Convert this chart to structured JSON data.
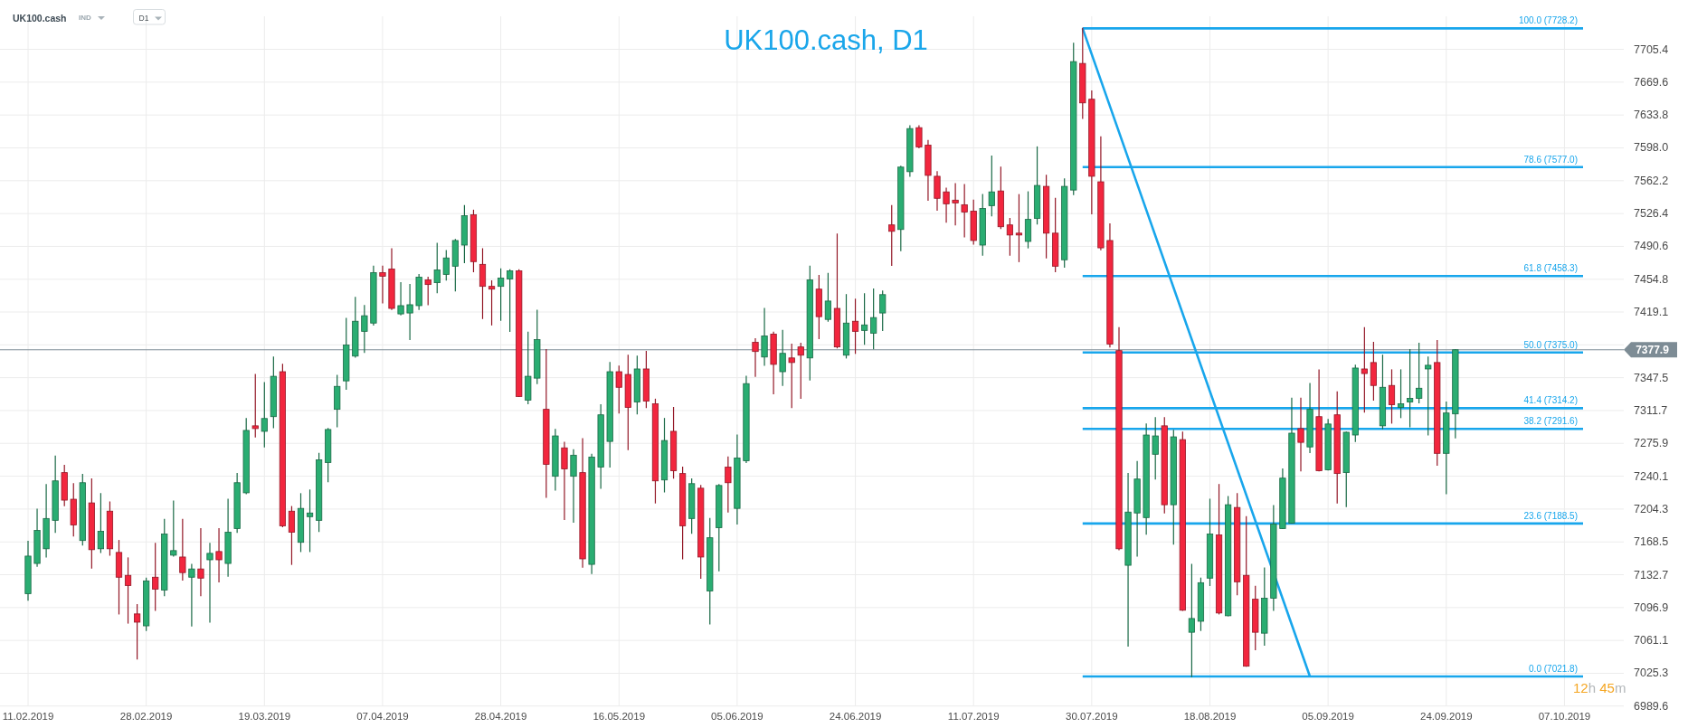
{
  "chart_data": {
    "type": "candlestick",
    "title": "UK100.cash, D1",
    "annotations": [
      "UK100.cash",
      "IND",
      "D1",
      "12h 45m"
    ],
    "categories": [
      "11.02.2019",
      null,
      null,
      null,
      null,
      null,
      null,
      null,
      null,
      null,
      null,
      null,
      null,
      "28.02.2019",
      null,
      null,
      null,
      null,
      null,
      null,
      null,
      null,
      null,
      null,
      null,
      null,
      "19.03.2019",
      null,
      null,
      null,
      null,
      null,
      null,
      null,
      null,
      null,
      null,
      null,
      null,
      "07.04.2019",
      null,
      null,
      null,
      null,
      null,
      null,
      null,
      null,
      null,
      null,
      null,
      null,
      "28.04.2019",
      null,
      null,
      null,
      null,
      null,
      null,
      null,
      null,
      null,
      null,
      null,
      null,
      "16.05.2019",
      null,
      null,
      null,
      null,
      null,
      null,
      null,
      null,
      null,
      null,
      null,
      null,
      "05.06.2019",
      null,
      null,
      null,
      null,
      null,
      null,
      null,
      null,
      null,
      null,
      null,
      null,
      "24.06.2019",
      null,
      null,
      null,
      null,
      null,
      null,
      null,
      null,
      null,
      null,
      null,
      null,
      "11.07.2019",
      null,
      null,
      null,
      null,
      null,
      null,
      null,
      null,
      null,
      null,
      null,
      null,
      "30.07.2019",
      null,
      null,
      null,
      null,
      null,
      null,
      null,
      null,
      null,
      null,
      null,
      null,
      "18.08.2019",
      null,
      null,
      null,
      null,
      null,
      null,
      null,
      null,
      null,
      null,
      null,
      null,
      "05.09.2019",
      null,
      null,
      null,
      null,
      null,
      null,
      null,
      null,
      null,
      null,
      null,
      null,
      "24.09.2019",
      null,
      null,
      null,
      null,
      null,
      null,
      null,
      null,
      null,
      null,
      null,
      null,
      "07.10.2019",
      null,
      null,
      null,
      null,
      null,
      null
    ],
    "ohlc": [
      [
        7112,
        7169,
        7105,
        7153
      ],
      [
        7145,
        7204,
        7142,
        7181
      ],
      [
        7161,
        7231,
        7152,
        7194
      ],
      [
        7192,
        7262,
        7179,
        7235
      ],
      [
        7244,
        7252,
        7208,
        7214
      ],
      [
        7215,
        7232,
        7175,
        7187
      ],
      [
        7170,
        7242,
        7165,
        7233
      ],
      [
        7211,
        7237,
        7140,
        7160
      ],
      [
        7161,
        7221,
        7157,
        7180
      ],
      [
        7202,
        7212,
        7154,
        7161
      ],
      [
        7157,
        7170,
        7090,
        7130
      ],
      [
        7132,
        7151,
        7080,
        7121
      ],
      [
        7090,
        7100,
        7041,
        7081
      ],
      [
        7077,
        7129,
        7072,
        7126
      ],
      [
        7130,
        7167,
        7094,
        7117
      ],
      [
        7116,
        7193,
        7110,
        7177
      ],
      [
        7154,
        7213,
        7153,
        7159
      ],
      [
        7152,
        7193,
        7127,
        7135
      ],
      [
        7130,
        7144,
        7077,
        7139
      ],
      [
        7139,
        7183,
        7110,
        7129
      ],
      [
        7149,
        7167,
        7081,
        7156
      ],
      [
        7158,
        7183,
        7125,
        7149
      ],
      [
        7145,
        7215,
        7131,
        7179
      ],
      [
        7183,
        7243,
        7179,
        7233
      ],
      [
        7222,
        7303,
        7221,
        7290
      ],
      [
        7295,
        7351,
        7283,
        7292
      ],
      [
        7289,
        7342,
        7272,
        7303
      ],
      [
        7305,
        7370,
        7293,
        7349
      ],
      [
        7354,
        7362,
        7185,
        7186
      ],
      [
        7202,
        7207,
        7144,
        7179
      ],
      [
        7168,
        7221,
        7158,
        7205
      ],
      [
        7196,
        7225,
        7158,
        7200
      ],
      [
        7192,
        7265,
        7180,
        7258
      ],
      [
        7255,
        7292,
        7234,
        7291
      ],
      [
        7313,
        7350,
        7294,
        7338
      ],
      [
        7344,
        7412,
        7335,
        7383
      ],
      [
        7371,
        7435,
        7370,
        7409
      ],
      [
        7398,
        7426,
        7375,
        7415
      ],
      [
        7407,
        7469,
        7405,
        7462
      ],
      [
        7462,
        7469,
        7429,
        7458
      ],
      [
        7466,
        7488,
        7422,
        7423
      ],
      [
        7417,
        7451,
        7416,
        7426
      ],
      [
        7418,
        7449,
        7389,
        7427
      ],
      [
        7426,
        7460,
        7422,
        7457
      ],
      [
        7454,
        7457,
        7427,
        7449
      ],
      [
        7451,
        7494,
        7440,
        7465
      ],
      [
        7460,
        7486,
        7454,
        7478
      ],
      [
        7469,
        7498,
        7442,
        7497
      ],
      [
        7492,
        7535,
        7473,
        7524
      ],
      [
        7525,
        7530,
        7463,
        7474
      ],
      [
        7471,
        7488,
        7412,
        7447
      ],
      [
        7447,
        7453,
        7405,
        7444
      ],
      [
        7447,
        7466,
        7410,
        7456
      ],
      [
        7455,
        7465,
        7398,
        7464
      ],
      [
        7464,
        7465,
        7327,
        7327
      ],
      [
        7323,
        7397,
        7319,
        7349
      ],
      [
        7347,
        7421,
        7341,
        7389
      ],
      [
        7313,
        7378,
        7217,
        7253
      ],
      [
        7240,
        7291,
        7225,
        7284
      ],
      [
        7271,
        7277,
        7193,
        7248
      ],
      [
        7240,
        7269,
        7190,
        7263
      ],
      [
        7244,
        7281,
        7141,
        7150
      ],
      [
        7144,
        7264,
        7134,
        7261
      ],
      [
        7250,
        7318,
        7227,
        7307
      ],
      [
        7278,
        7364,
        7250,
        7354
      ],
      [
        7354,
        7360,
        7309,
        7337
      ],
      [
        7351,
        7372,
        7269,
        7315
      ],
      [
        7321,
        7371,
        7308,
        7357
      ],
      [
        7357,
        7376,
        7315,
        7322
      ],
      [
        7319,
        7324,
        7211,
        7235
      ],
      [
        7236,
        7303,
        7223,
        7279
      ],
      [
        7289,
        7315,
        7238,
        7246
      ],
      [
        7243,
        7250,
        7150,
        7186
      ],
      [
        7194,
        7237,
        7178,
        7232
      ],
      [
        7227,
        7230,
        7129,
        7152
      ],
      [
        7115,
        7194,
        7079,
        7173
      ],
      [
        7184,
        7231,
        7137,
        7230
      ],
      [
        7250,
        7261,
        7201,
        7233
      ],
      [
        7205,
        7285,
        7188,
        7260
      ],
      [
        7257,
        7349,
        7255,
        7341
      ],
      [
        7386,
        7390,
        7349,
        7376
      ],
      [
        7370,
        7423,
        7361,
        7393
      ],
      [
        7395,
        7397,
        7330,
        7362
      ],
      [
        7354,
        7399,
        7339,
        7374
      ],
      [
        7369,
        7384,
        7315,
        7364
      ],
      [
        7381,
        7385,
        7325,
        7372
      ],
      [
        7369,
        7469,
        7345,
        7454
      ],
      [
        7444,
        7459,
        7390,
        7414
      ],
      [
        7411,
        7461,
        7409,
        7431
      ],
      [
        7423,
        7504,
        7380,
        7381
      ],
      [
        7372,
        7438,
        7369,
        7407
      ],
      [
        7409,
        7433,
        7374,
        7398
      ],
      [
        7399,
        7439,
        7384,
        7405
      ],
      [
        7396,
        7444,
        7379,
        7413
      ],
      [
        7418,
        7442,
        7399,
        7438
      ],
      [
        7514,
        7535,
        7470,
        7507
      ],
      [
        7509,
        7578,
        7486,
        7577
      ],
      [
        7572,
        7622,
        7567,
        7619
      ],
      [
        7620,
        7622,
        7598,
        7599
      ],
      [
        7601,
        7606,
        7541,
        7568
      ],
      [
        7567,
        7572,
        7530,
        7543
      ],
      [
        7550,
        7554,
        7517,
        7537
      ],
      [
        7541,
        7559,
        7514,
        7538
      ],
      [
        7536,
        7558,
        7501,
        7528
      ],
      [
        7529,
        7541,
        7493,
        7497
      ],
      [
        7492,
        7547,
        7481,
        7532
      ],
      [
        7535,
        7589,
        7524,
        7550
      ],
      [
        7551,
        7577,
        7510,
        7512
      ],
      [
        7514,
        7521,
        7481,
        7503
      ],
      [
        7505,
        7547,
        7474,
        7503
      ],
      [
        7496,
        7550,
        7489,
        7520
      ],
      [
        7521,
        7599,
        7515,
        7557
      ],
      [
        7556,
        7568,
        7478,
        7505
      ],
      [
        7505,
        7543,
        7463,
        7469
      ],
      [
        7476,
        7564,
        7468,
        7556
      ],
      [
        7552,
        7712,
        7547,
        7692
      ],
      [
        7690,
        7728.2,
        7630,
        7647
      ],
      [
        7651,
        7660,
        7526,
        7567
      ],
      [
        7561,
        7610,
        7487,
        7489
      ],
      [
        7497,
        7515,
        7381,
        7384
      ],
      [
        7377,
        7402,
        7160,
        7161
      ],
      [
        7143,
        7243,
        7055,
        7201
      ],
      [
        7200,
        7256,
        7153,
        7237
      ],
      [
        7195,
        7297,
        7177,
        7285
      ],
      [
        7264,
        7304,
        7237,
        7284
      ],
      [
        7295,
        7304,
        7200,
        7209
      ],
      [
        7209,
        7290,
        7166,
        7283
      ],
      [
        7280,
        7288,
        7094,
        7094
      ],
      [
        7070,
        7144,
        7021.8,
        7085
      ],
      [
        7082,
        7129,
        7072,
        7124
      ],
      [
        7129,
        7215,
        7121,
        7177
      ],
      [
        7176,
        7231,
        7090,
        7091
      ],
      [
        7088,
        7218,
        7088,
        7209
      ],
      [
        7206,
        7221,
        7111,
        7125
      ],
      [
        7132,
        7196,
        7033,
        7033
      ],
      [
        7106,
        7120,
        7051,
        7070
      ],
      [
        7069,
        7140,
        7056,
        7107
      ],
      [
        7107,
        7208,
        7094,
        7188
      ],
      [
        7183,
        7248,
        7183,
        7238
      ],
      [
        7189,
        7325,
        7189,
        7287
      ],
      [
        7292,
        7325,
        7246,
        7277
      ],
      [
        7272,
        7341,
        7266,
        7313
      ],
      [
        7305,
        7356,
        7246,
        7246
      ],
      [
        7247,
        7302,
        7247,
        7297
      ],
      [
        7307,
        7332,
        7211,
        7243
      ],
      [
        7244,
        7288,
        7207,
        7288
      ],
      [
        7285,
        7361,
        7278,
        7358
      ],
      [
        7357,
        7402,
        7310,
        7352
      ],
      [
        7364,
        7386,
        7323,
        7339
      ],
      [
        7295,
        7372,
        7292,
        7337
      ],
      [
        7339,
        7356,
        7298,
        7318
      ],
      [
        7315,
        7356,
        7304,
        7319
      ],
      [
        7321,
        7378,
        7294,
        7325
      ],
      [
        7325,
        7385,
        7320,
        7336
      ],
      [
        7357,
        7370,
        7285,
        7361
      ],
      [
        7364,
        7388,
        7252,
        7265
      ],
      [
        7265,
        7321,
        7221,
        7309
      ],
      [
        7308,
        7377.9,
        7282,
        7377.9
      ],
      null,
      null,
      null,
      null,
      null,
      null,
      null,
      null,
      null,
      null,
      null,
      null,
      null,
      null,
      null,
      null,
      null,
      null
    ],
    "colors": [
      "#2aad72",
      "#2aad72",
      "#2aad72",
      "#2aad72",
      "#f2263e",
      "#f2263e",
      "#2aad72",
      "#f2263e",
      "#2aad72",
      "#f2263e",
      "#f2263e",
      "#f2263e",
      "#f2263e",
      "#2aad72",
      "#f2263e",
      "#2aad72",
      "#2aad72",
      "#f2263e",
      "#2aad72",
      "#f2263e",
      "#2aad72",
      "#f2263e",
      "#2aad72",
      "#2aad72",
      "#2aad72",
      "#f2263e",
      "#2aad72",
      "#2aad72",
      "#f2263e",
      "#f2263e",
      "#2aad72",
      "#2aad72",
      "#2aad72",
      "#2aad72",
      "#2aad72",
      "#2aad72",
      "#2aad72",
      "#2aad72",
      "#2aad72",
      "#f2263e",
      "#f2263e",
      "#2aad72",
      "#2aad72",
      "#2aad72",
      "#f2263e",
      "#2aad72",
      "#2aad72",
      "#2aad72",
      "#2aad72",
      "#f2263e",
      "#f2263e",
      "#f2263e",
      "#2aad72",
      "#2aad72",
      "#f2263e",
      "#2aad72",
      "#2aad72",
      "#f2263e",
      "#2aad72",
      "#f2263e",
      "#2aad72",
      "#f2263e",
      "#2aad72",
      "#2aad72",
      "#2aad72",
      "#f2263e",
      "#f2263e",
      "#2aad72",
      "#f2263e",
      "#f2263e",
      "#2aad72",
      "#f2263e",
      "#f2263e",
      "#2aad72",
      "#f2263e",
      "#2aad72",
      "#2aad72",
      "#f2263e",
      "#2aad72",
      "#2aad72",
      "#f2263e",
      "#2aad72",
      "#f2263e",
      "#2aad72",
      "#f2263e",
      "#f2263e",
      "#2aad72",
      "#f2263e",
      "#2aad72",
      "#f2263e",
      "#2aad72",
      "#f2263e",
      "#2aad72",
      "#2aad72",
      "#2aad72",
      "#f2263e",
      "#2aad72",
      "#2aad72",
      "#f2263e",
      "#f2263e",
      "#f2263e",
      "#f2263e",
      "#f2263e",
      "#f2263e",
      "#f2263e",
      "#2aad72",
      "#2aad72",
      "#f2263e",
      "#f2263e",
      "#f2263e",
      "#2aad72",
      "#2aad72",
      "#f2263e",
      "#f2263e",
      "#2aad72",
      "#2aad72",
      "#f2263e",
      "#f2263e",
      "#f2263e",
      "#f2263e",
      "#f2263e",
      "#2aad72",
      "#2aad72",
      "#2aad72",
      "#2aad72",
      "#f2263e",
      "#2aad72",
      "#f2263e",
      "#2aad72",
      "#2aad72",
      "#2aad72",
      "#f2263e",
      "#2aad72",
      "#f2263e",
      "#f2263e",
      "#f2263e",
      "#2aad72",
      "#2aad72",
      "#2aad72",
      "#2aad72",
      "#f2263e",
      "#2aad72",
      "#f2263e",
      "#2aad72",
      "#f2263e",
      "#2aad72",
      "#2aad72",
      "#f2263e",
      "#f2263e",
      "#2aad72",
      "#f2263e",
      "#2aad72",
      "#2aad72",
      "#2aad72",
      "#2aad72",
      "#f2263e",
      "#2aad72",
      "#2aad72",
      null,
      null,
      null,
      null,
      null,
      null,
      null,
      null,
      null,
      null,
      null,
      null,
      null,
      null,
      null,
      null,
      null,
      null
    ],
    "series": [
      {
        "type": "line",
        "color": "#18a6ec",
        "values": [
          null,
          null,
          null,
          null,
          null,
          null,
          null,
          null,
          null,
          null,
          null,
          null,
          null,
          null,
          null,
          null,
          null,
          null,
          null,
          null,
          null,
          null,
          null,
          null,
          null,
          null,
          null,
          null,
          null,
          null,
          null,
          null,
          null,
          null,
          null,
          null,
          null,
          null,
          null,
          null,
          null,
          null,
          null,
          null,
          null,
          null,
          null,
          null,
          null,
          null,
          null,
          null,
          null,
          null,
          null,
          null,
          null,
          null,
          null,
          null,
          null,
          null,
          null,
          null,
          null,
          null,
          null,
          null,
          null,
          null,
          null,
          null,
          null,
          null,
          null,
          null,
          null,
          null,
          null,
          null,
          null,
          null,
          null,
          null,
          null,
          null,
          null,
          null,
          null,
          null,
          null,
          null,
          null,
          null,
          null,
          null,
          null,
          null,
          null,
          null,
          null,
          null,
          null,
          null,
          null,
          null,
          null,
          null,
          null,
          null,
          null,
          null,
          null,
          null,
          null,
          null,
          7728.2,
          null,
          null,
          null,
          null,
          null,
          null,
          null,
          null,
          null,
          null,
          null,
          null,
          null,
          null,
          null,
          null,
          null,
          null,
          null,
          null,
          null,
          null,
          null,
          null,
          7021.8,
          null,
          null,
          null,
          null,
          null,
          null,
          null,
          null,
          null,
          null,
          null,
          null,
          null,
          null,
          null,
          null,
          null,
          null,
          null,
          null,
          null,
          null,
          null,
          null,
          null,
          null,
          null,
          null,
          null,
          null,
          null,
          null,
          null,
          null
        ]
      }
    ],
    "ref_lines": [
      {
        "axis": "y",
        "value": 7377.9,
        "label": "7377.9",
        "color": "#7d8c95"
      },
      {
        "axis": "y",
        "value": 7728.2,
        "label": "100.0 (7728.2)",
        "color": "#18a6ec"
      },
      {
        "axis": "y",
        "value": 7577.0,
        "label": "78.6 (7577.0)",
        "color": "#18a6ec"
      },
      {
        "axis": "y",
        "value": 7458.3,
        "label": "61.8 (7458.3)",
        "color": "#18a6ec"
      },
      {
        "axis": "y",
        "value": 7375.0,
        "label": "50.0 (7375.0)",
        "color": "#18a6ec"
      },
      {
        "axis": "y",
        "value": 7314.2,
        "label": "41.4 (7314.2)",
        "color": "#18a6ec"
      },
      {
        "axis": "y",
        "value": 7291.6,
        "label": "38.2 (7291.6)",
        "color": "#18a6ec"
      },
      {
        "axis": "y",
        "value": 7188.5,
        "label": "23.6 (7188.5)",
        "color": "#18a6ec"
      },
      {
        "axis": "y",
        "value": 7021.8,
        "label": "0.0 (7021.8)",
        "color": "#18a6ec"
      }
    ],
    "ylim": [
      6989.6,
      7741.4
    ],
    "yticks": [
      6989.6,
      7025.3,
      7061.1,
      7096.9,
      7132.7,
      7168.5,
      7204.3,
      7240.1,
      7275.9,
      7311.7,
      7347.5,
      {
        "value": 7383.3,
        "label": null
      },
      7419.1,
      7454.8,
      7490.6,
      7526.4,
      7562.2,
      {
        "value": 7598,
        "label": "7598.0"
      },
      7633.8,
      7669.6,
      7705.4
    ],
    "grid": true
  }
}
